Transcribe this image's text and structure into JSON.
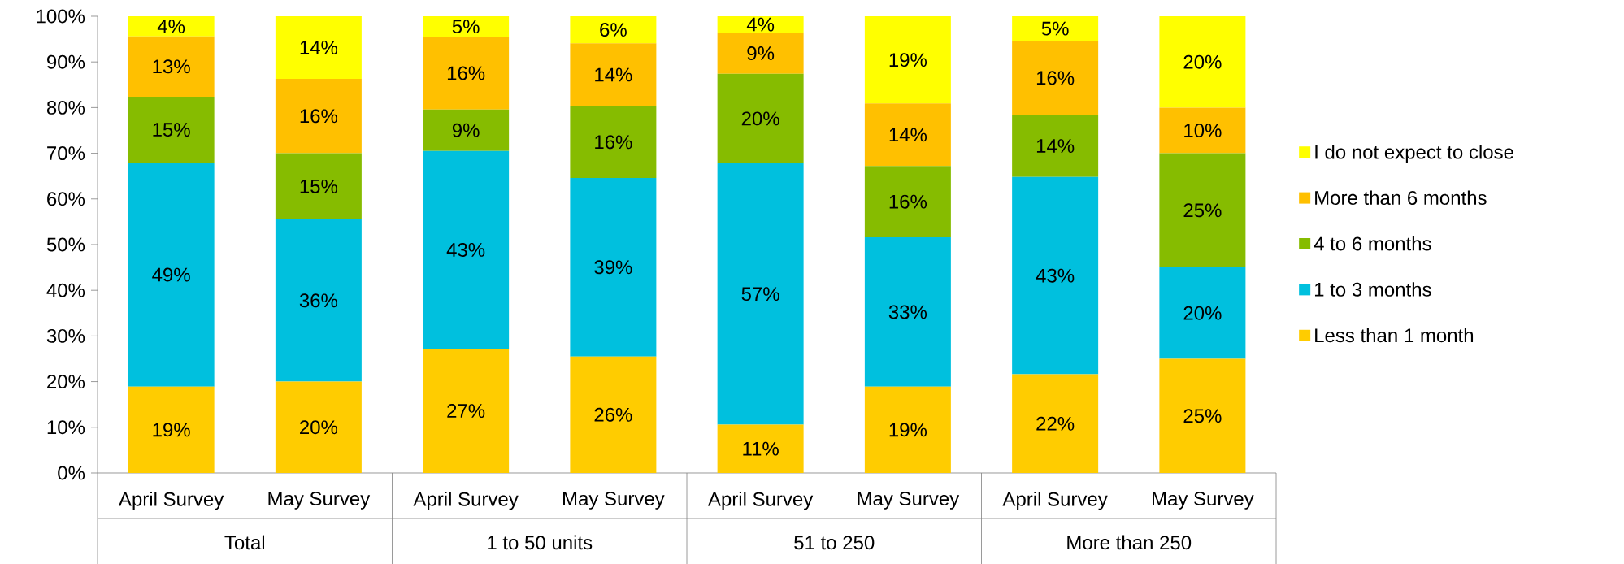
{
  "chart_data": {
    "type": "bar",
    "stacked": true,
    "categories": [
      "April Survey",
      "May Survey",
      "April Survey",
      "May Survey",
      "April Survey",
      "May Survey",
      "April Survey",
      "May Survey"
    ],
    "annotations": [
      "Total",
      "1 to 50 units",
      "51 to 250",
      "More than 250"
    ],
    "series": [
      {
        "name": "Less than 1 month",
        "color": "#ffcc00",
        "values": [
          18.9,
          20.0,
          27.2,
          25.5,
          10.6,
          18.9,
          21.6,
          25.0
        ],
        "value_labels": [
          "19%",
          "20%",
          "27%",
          "26%",
          "11%",
          "19%",
          "22%",
          "25%"
        ]
      },
      {
        "name": "1 to 3 months",
        "color": "#00c0de",
        "values": [
          49.0,
          35.5,
          43.3,
          39.1,
          57.2,
          32.7,
          43.2,
          20.0
        ],
        "value_labels": [
          "49%",
          "36%",
          "43%",
          "39%",
          "57%",
          "33%",
          "43%",
          "20%"
        ]
      },
      {
        "name": "4 to 6 months",
        "color": "#86bc00",
        "values": [
          14.5,
          14.5,
          9.1,
          15.7,
          19.6,
          15.6,
          13.6,
          25.0
        ],
        "value_labels": [
          "15%",
          "15%",
          "9%",
          "16%",
          "20%",
          "16%",
          "14%",
          "25%"
        ]
      },
      {
        "name": "More than 6 months",
        "color": "#ffc000",
        "values": [
          13.2,
          16.3,
          15.9,
          13.8,
          9.0,
          13.7,
          16.2,
          10.0
        ],
        "value_labels": [
          "13%",
          "16%",
          "16%",
          "14%",
          "9%",
          "14%",
          "16%",
          "10%"
        ]
      },
      {
        "name": "I do not expect to close",
        "color": "#ffff00",
        "values": [
          4.4,
          13.7,
          4.5,
          5.9,
          3.6,
          19.1,
          5.4,
          20.0
        ],
        "value_labels": [
          "4%",
          "14%",
          "5%",
          "6%",
          "4%",
          "19%",
          "5%",
          "20%"
        ]
      }
    ],
    "ylim": [
      0,
      100
    ],
    "yticks": [
      {
        "value": 0,
        "label": "0%"
      },
      {
        "value": 10,
        "label": "10%"
      },
      {
        "value": 20,
        "label": "20%"
      },
      {
        "value": 30,
        "label": "30%"
      },
      {
        "value": 40,
        "label": "40%"
      },
      {
        "value": 50,
        "label": "50%"
      },
      {
        "value": 60,
        "label": "60%"
      },
      {
        "value": 70,
        "label": "70%"
      },
      {
        "value": 80,
        "label": "80%"
      },
      {
        "value": 90,
        "label": "90%"
      },
      {
        "value": 100,
        "label": "100%"
      }
    ],
    "legend": "right"
  }
}
